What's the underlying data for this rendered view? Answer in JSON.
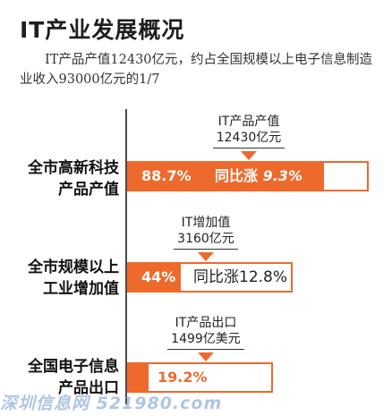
{
  "title": "IT产业发展概况",
  "subtitle": "IT产品产值12430亿元，约占全国规模以上电子信息制造业收入93000亿元的1/7",
  "watermark": "深圳信息网 521980.com",
  "colors": {
    "accent": "#ee6a2c",
    "axis": "#4a4a4a"
  },
  "chart_data": {
    "type": "bar",
    "orientation": "horizontal",
    "categories": [
      "全市高新科技产品产值",
      "全市规模以上工业增加值",
      "全国电子信息产品出口"
    ],
    "category_lines": [
      [
        "全市高新科技",
        "产品产值"
      ],
      [
        "全市规模以上",
        "工业增加值"
      ],
      [
        "全国电子信息",
        "产品出口"
      ]
    ],
    "values": [
      88.7,
      44,
      19.2
    ],
    "value_labels": [
      "88.7%",
      "44%",
      "19.2%"
    ],
    "growth_labels": [
      "同比涨",
      "同比涨12.8%",
      ""
    ],
    "growth_values": [
      "9.3%",
      "",
      ""
    ],
    "callouts": [
      {
        "line1": "IT产品产值",
        "line2": "12430亿元"
      },
      {
        "line1": "IT增加值",
        "line2": "3160亿元"
      },
      {
        "line1": "IT产品出口",
        "line2": "1499亿美元"
      }
    ],
    "xlim": [
      0,
      100
    ]
  }
}
